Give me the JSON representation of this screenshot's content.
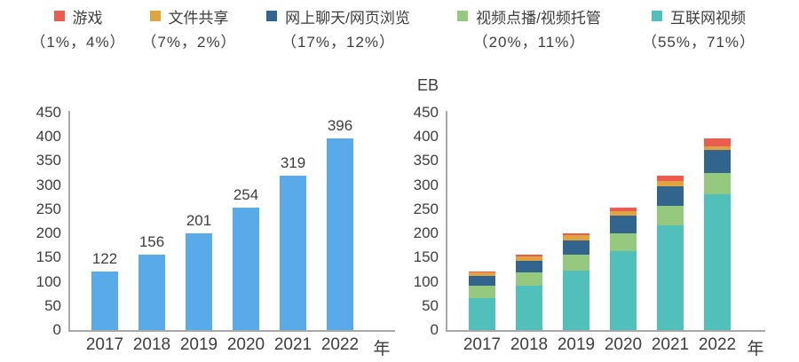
{
  "page": {
    "background": "#ffffff",
    "text_color": "#3d3d3d",
    "axis_color": "#a8a8a8"
  },
  "legend": {
    "items": [
      {
        "label": "游戏",
        "percentages": "（1%，4%）",
        "color": "#eb5b50"
      },
      {
        "label": "文件共享",
        "percentages": "（7%，2%）",
        "color": "#dfa33f"
      },
      {
        "label": "网上聊天/网页浏览",
        "percentages": "（17%，12%）",
        "color": "#31658e"
      },
      {
        "label": "视频点播/视频托管",
        "percentages": "（20%，11%）",
        "color": "#94c97e"
      },
      {
        "label": "互联网视频",
        "percentages": "（55%，71%）",
        "color": "#52c0ba"
      }
    ]
  },
  "chart_data": [
    {
      "id": "total-internet-traffic",
      "type": "bar",
      "categories": [
        "2017",
        "2018",
        "2019",
        "2020",
        "2021",
        "2022"
      ],
      "values": [
        122,
        156,
        201,
        254,
        319,
        396
      ],
      "data_labels": [
        "122",
        "156",
        "201",
        "254",
        "319",
        "396"
      ],
      "bar_color": "#59aae8",
      "title": "",
      "xlabel": "年",
      "ylabel": "",
      "ylim": [
        0,
        450
      ],
      "ytick_step": 50,
      "grid": false,
      "legend_position": "none"
    },
    {
      "id": "traffic-by-application-stacked",
      "type": "bar",
      "stacked": true,
      "unit_label": "EB",
      "categories": [
        "2017",
        "2018",
        "2019",
        "2020",
        "2021",
        "2022"
      ],
      "series": [
        {
          "name": "互联网视频",
          "color": "#52c0ba",
          "values": [
            67,
            91,
            123,
            164,
            216,
            281
          ]
        },
        {
          "name": "视频点播/视频托管",
          "color": "#94c97e",
          "values": [
            24,
            28,
            33,
            37,
            41,
            44
          ]
        },
        {
          "name": "网上聊天/网页浏览",
          "color": "#31658e",
          "values": [
            21,
            25,
            30,
            36,
            41,
            47
          ]
        },
        {
          "name": "文件共享",
          "color": "#dfa33f",
          "values": [
            9,
            9,
            10,
            10,
            10,
            8
          ]
        },
        {
          "name": "游戏",
          "color": "#eb5b50",
          "values": [
            1,
            3,
            5,
            7,
            11,
            16
          ]
        }
      ],
      "totals": [
        122,
        156,
        201,
        254,
        319,
        396
      ],
      "title": "",
      "xlabel": "年",
      "ylabel": "EB",
      "ylim": [
        0,
        450
      ],
      "ytick_step": 50,
      "grid": false,
      "legend_position": "top"
    }
  ]
}
